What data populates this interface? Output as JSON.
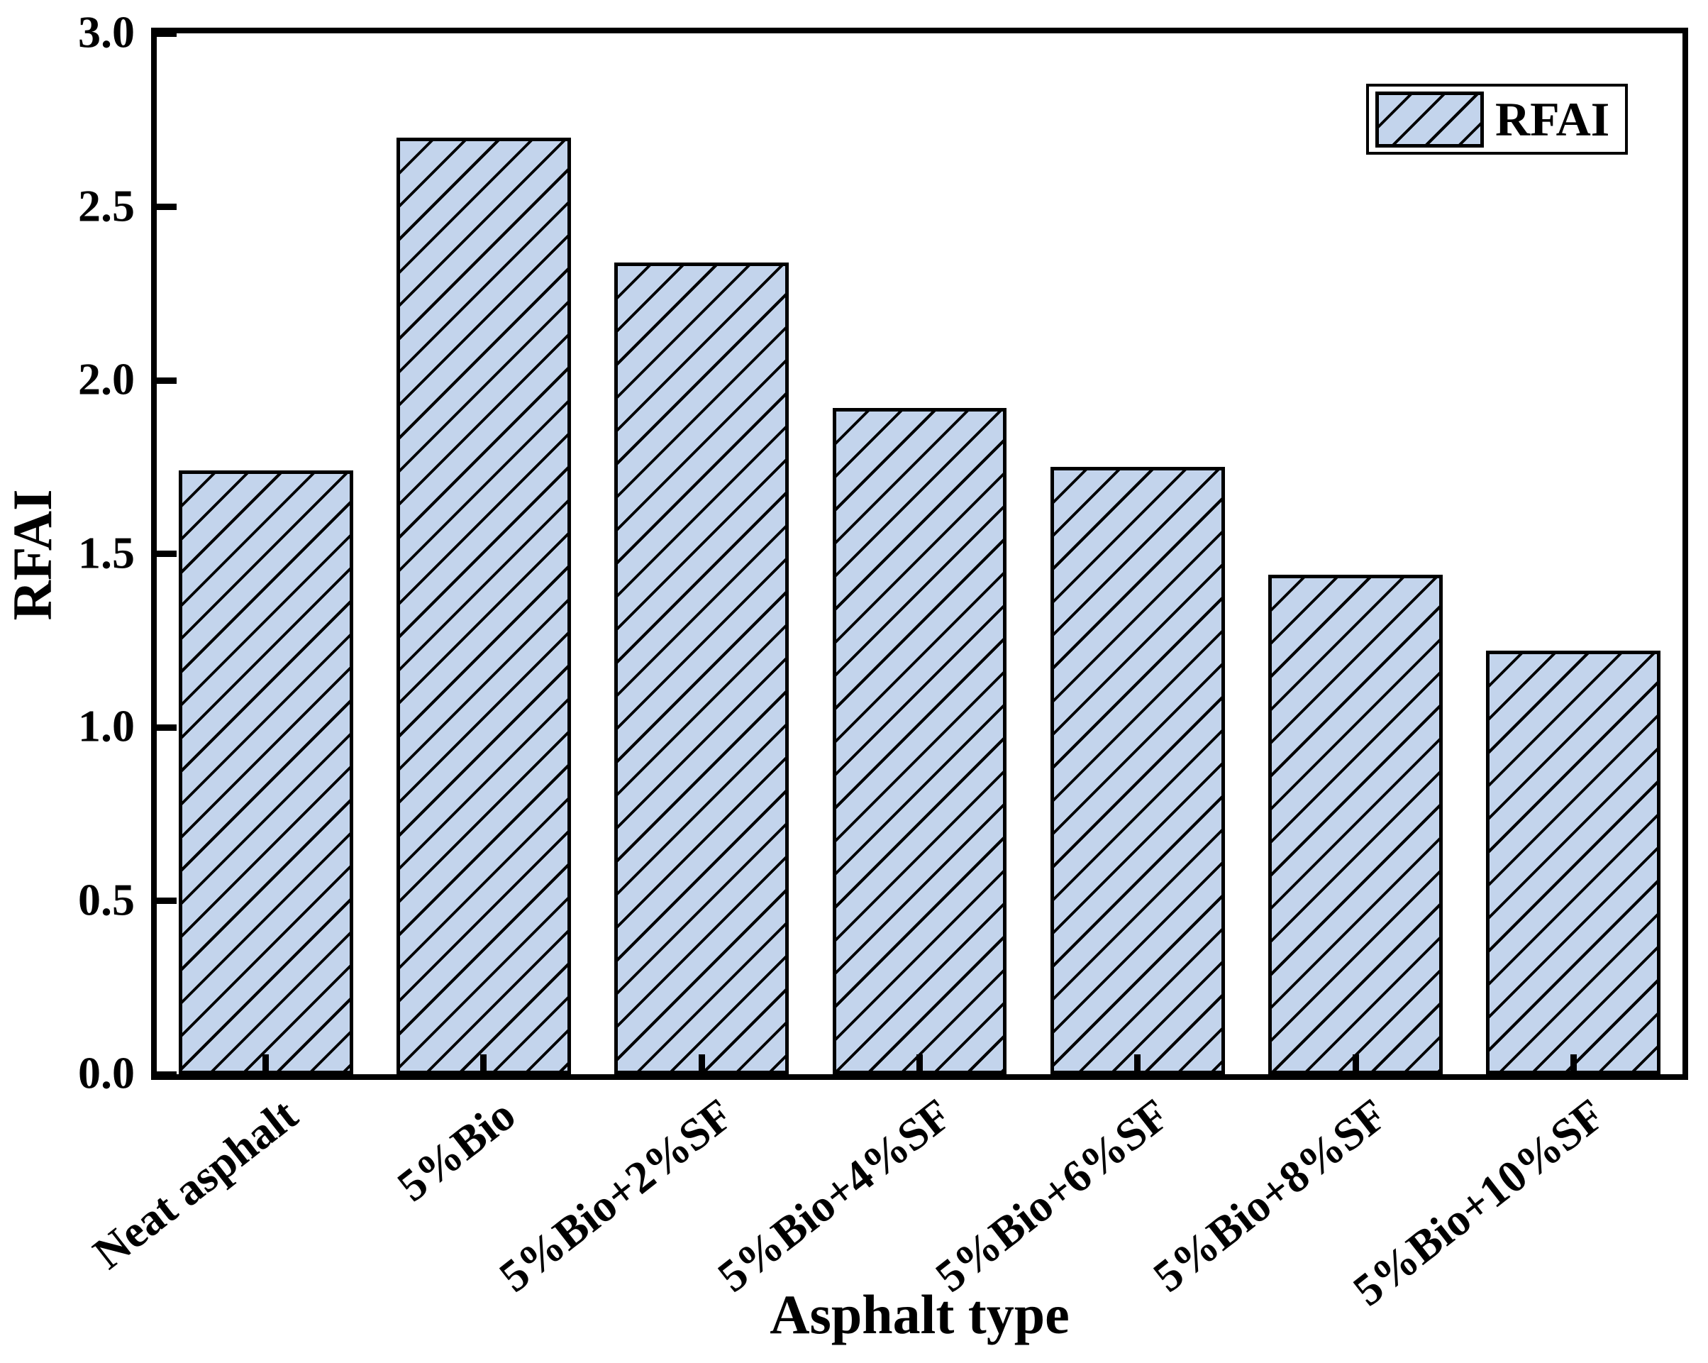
{
  "chart_data": {
    "type": "bar",
    "title": "",
    "xlabel": "Asphalt type",
    "ylabel": "RFAI",
    "categories": [
      "Neat asphalt",
      "5%Bio",
      "5%Bio+2%SF",
      "5%Bio+4%SF",
      "5%Bio+6%SF",
      "5%Bio+8%SF",
      "5%Bio+10%SF"
    ],
    "values": [
      1.74,
      2.7,
      2.34,
      1.92,
      1.75,
      1.44,
      1.22
    ],
    "series_name": "RFAI",
    "ylim": [
      0.0,
      3.0
    ],
    "yticks": [
      3.0,
      2.5,
      2.0,
      1.5,
      1.0,
      0.5,
      0.0
    ],
    "ytick_labels": [
      "3.0",
      "2.5",
      "2.0",
      "1.5",
      "1.0",
      "0.5",
      "0.0"
    ],
    "xtick_label_rotation_deg": -38,
    "bar_width_fraction": 0.8,
    "bar_fill": "#c3d4ec",
    "bar_edge": "#000000",
    "hatch_style": "diagonal-forward-slash",
    "grid": false,
    "legend": {
      "label": "RFAI",
      "position": "top-right"
    }
  }
}
